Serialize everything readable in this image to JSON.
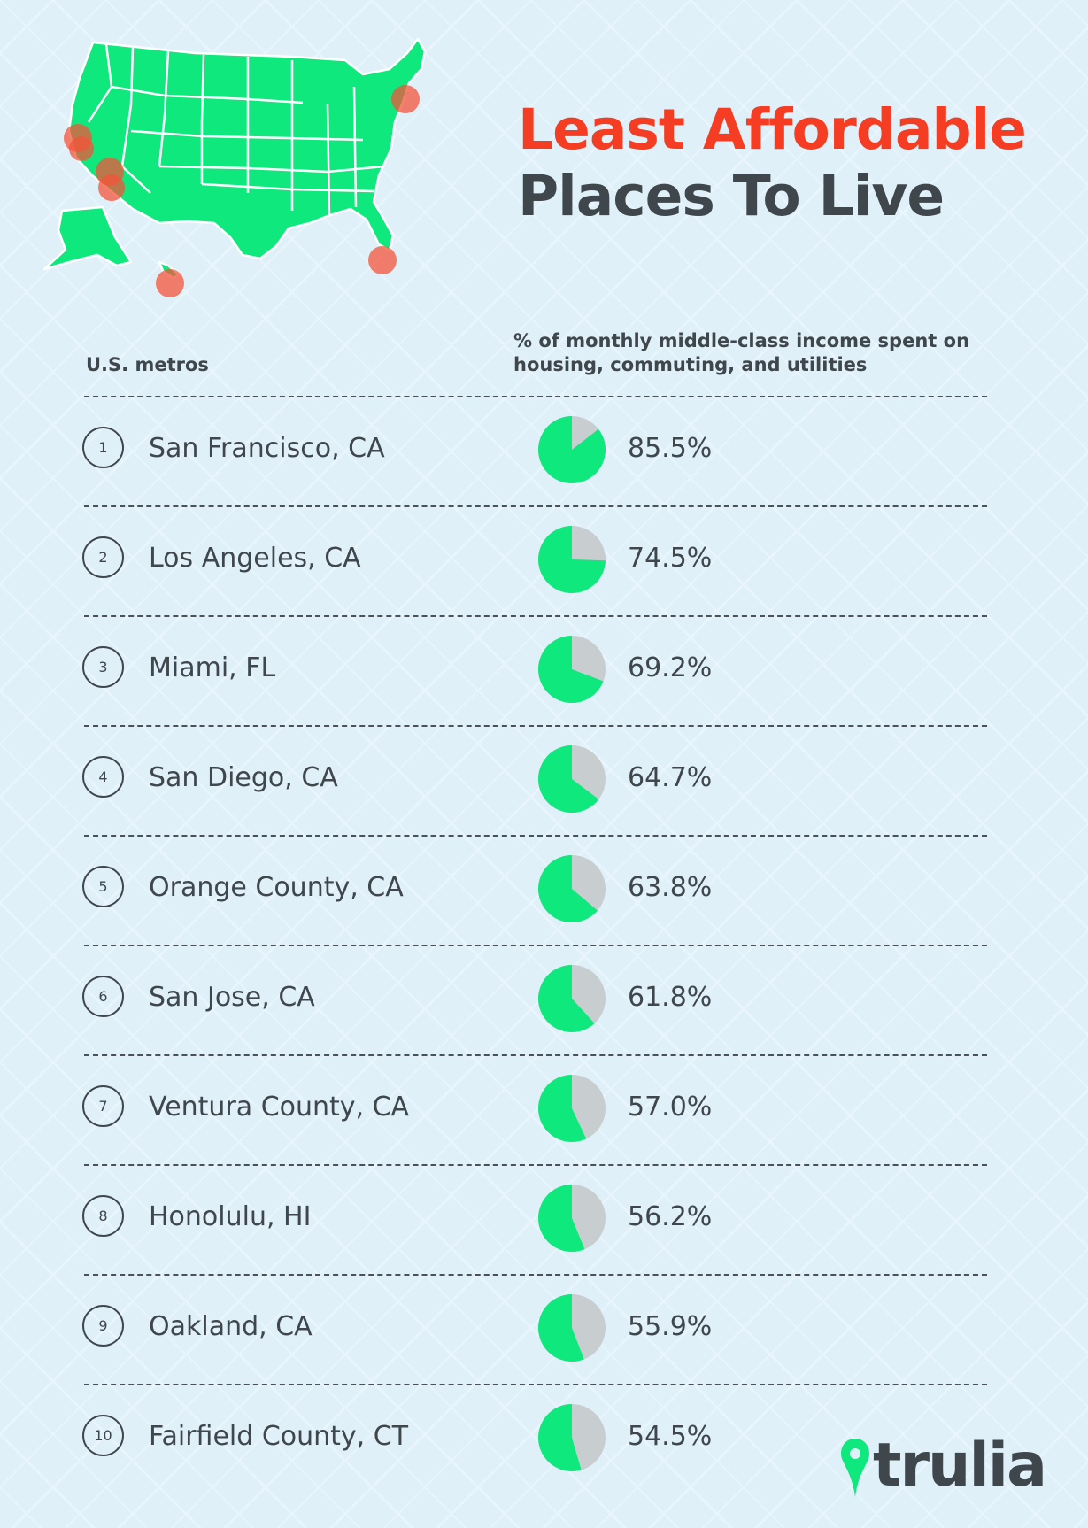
{
  "title": {
    "line1": "Least Affordable",
    "line2": "Places To Live"
  },
  "columns": {
    "metro": "U.S. metros",
    "percent_line1": "% of monthly middle-class income spent on",
    "percent_line2": "housing, commuting, and utilities"
  },
  "colors": {
    "title_accent": "#f43d22",
    "text": "#3f474d",
    "pie_fill": "#0ee87c",
    "pie_rest": "#c8cdd0",
    "map_fill": "#0ee87c",
    "marker": "#f4543a",
    "background": "#dff0f9"
  },
  "chart_data": {
    "type": "pie",
    "title": "Least Affordable Places To Live",
    "categories": [
      "San Francisco, CA",
      "Los Angeles, CA",
      "Miami, FL",
      "San Diego, CA",
      "Orange County, CA",
      "San Jose, CA",
      "Ventura County, CA",
      "Honolulu, HI",
      "Oakland, CA",
      "Fairfield County, CT"
    ],
    "values": [
      85.5,
      74.5,
      69.2,
      64.7,
      63.8,
      61.8,
      57.0,
      56.2,
      55.9,
      54.5
    ],
    "labels": [
      "85.5%",
      "74.5%",
      "69.2%",
      "64.7%",
      "63.8%",
      "61.8%",
      "57.0%",
      "56.2%",
      "55.9%",
      "54.5%"
    ],
    "ranks": [
      "1",
      "2",
      "3",
      "4",
      "5",
      "6",
      "7",
      "8",
      "9",
      "10"
    ]
  },
  "map": {
    "icon": "us-map-icon",
    "marker_icon": "location-marker-icon"
  },
  "logo": {
    "text": "trulia",
    "icon": "map-pin-icon"
  }
}
